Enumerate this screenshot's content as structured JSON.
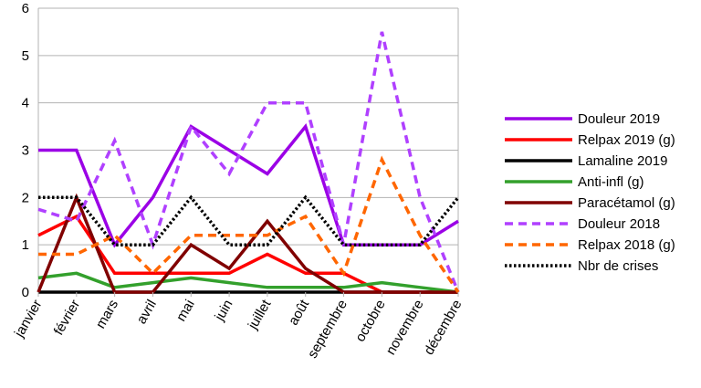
{
  "chart_data": {
    "type": "line",
    "categories": [
      "janvier",
      "février",
      "mars",
      "avril",
      "mai",
      "juin",
      "juillet",
      "août",
      "septembre",
      "octobre",
      "novembre",
      "décembre"
    ],
    "ylim": [
      0,
      6
    ],
    "yticks": [
      "0",
      "1",
      "2",
      "3",
      "4",
      "5",
      "6"
    ],
    "grid": "horizontal",
    "legend_position": "right",
    "series": [
      {
        "name": "Douleur 2019",
        "color": "#9b00e6",
        "dash": "solid",
        "values": [
          3,
          3,
          1,
          2,
          3.5,
          3,
          2.5,
          3.5,
          1,
          1,
          1,
          1.5
        ]
      },
      {
        "name": "Relpax 2019 (g)",
        "color": "#ff0000",
        "dash": "solid",
        "values": [
          1.2,
          1.6,
          0.4,
          0.4,
          0.4,
          0.4,
          0.8,
          0.4,
          0.4,
          0,
          0,
          0
        ]
      },
      {
        "name": "Lamaline 2019",
        "color": "#000000",
        "dash": "solid",
        "values": [
          0,
          0,
          0,
          0,
          0,
          0,
          0,
          0,
          0,
          0,
          0,
          0
        ]
      },
      {
        "name": "Anti-infl (g)",
        "color": "#33a02c",
        "dash": "solid",
        "values": [
          0.3,
          0.4,
          0.1,
          0.2,
          0.3,
          0.2,
          0.1,
          0.1,
          0.1,
          0.2,
          0.1,
          0
        ]
      },
      {
        "name": "Paracétamol (g)",
        "color": "#800000",
        "dash": "solid",
        "values": [
          0,
          2,
          0,
          0,
          1,
          0.5,
          1.5,
          0.5,
          0,
          0,
          0,
          0
        ]
      },
      {
        "name": "Douleur 2018",
        "color": "#b040ff",
        "dash": "dashed",
        "values": [
          1.75,
          1.5,
          3.2,
          1,
          3.5,
          2.5,
          4,
          4,
          1,
          5.5,
          2,
          0
        ]
      },
      {
        "name": "Relpax 2018 (g)",
        "color": "#ff6600",
        "dash": "dashed",
        "values": [
          0.8,
          0.8,
          1.2,
          0.4,
          1.2,
          1.2,
          1.2,
          1.6,
          0.4,
          2.8,
          1.2,
          0
        ]
      },
      {
        "name": "Nbr de crises",
        "color": "#000000",
        "dash": "dotted",
        "values": [
          2,
          2,
          1,
          1,
          2,
          1,
          1,
          2,
          1,
          1,
          1,
          2
        ]
      }
    ]
  }
}
